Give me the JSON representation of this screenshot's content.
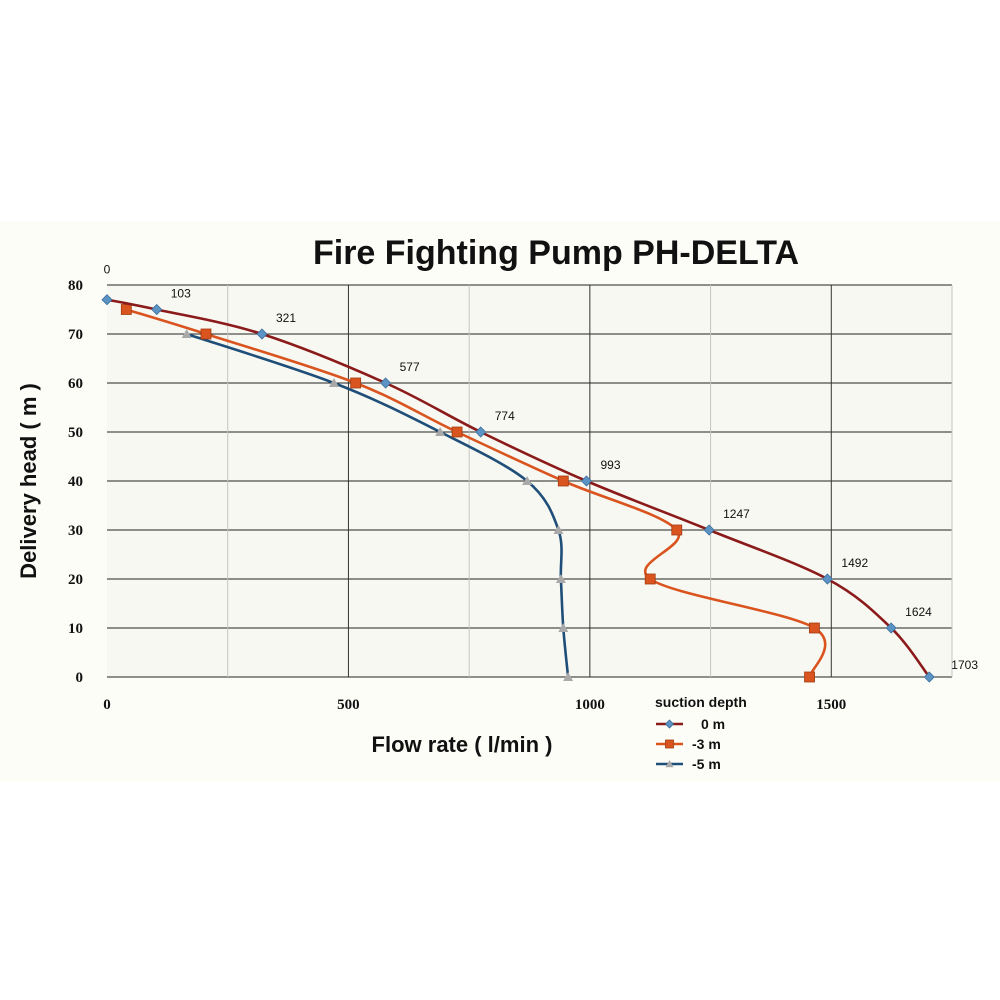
{
  "chart_data": {
    "type": "line",
    "title": "Fire Fighting Pump PH-DELTA",
    "xlabel": "Flow rate  ( l/min )",
    "ylabel": "Delivery head  ( m )",
    "xlim": [
      0,
      1750
    ],
    "ylim": [
      0,
      80
    ],
    "x_ticks": [
      0,
      500,
      1000,
      1500
    ],
    "y_ticks": [
      0,
      10,
      20,
      30,
      40,
      50,
      60,
      70,
      80
    ],
    "grid": true,
    "legend_title": "suction depth",
    "legend_position": "bottom-right",
    "series": [
      {
        "name": "0 m",
        "color": "#8b1a1a",
        "marker": "diamond",
        "marker_color": "#5b93c4",
        "points": [
          [
            0,
            77
          ],
          [
            103,
            75
          ],
          [
            321,
            70
          ],
          [
            577,
            60
          ],
          [
            774,
            50
          ],
          [
            993,
            40
          ],
          [
            1247,
            30
          ],
          [
            1492,
            20
          ],
          [
            1624,
            10
          ],
          [
            1703,
            0
          ]
        ],
        "labels": [
          "0",
          "103",
          "321",
          "577",
          "774",
          "993",
          "1247",
          "1492",
          "1624",
          "1703"
        ]
      },
      {
        "name": "-3 m",
        "color": "#d9541e",
        "marker": "square",
        "marker_color": "#d9541e",
        "points": [
          [
            40,
            75
          ],
          [
            205,
            70
          ],
          [
            515,
            60
          ],
          [
            725,
            50
          ],
          [
            945,
            40
          ],
          [
            1180,
            30
          ],
          [
            1125,
            20
          ],
          [
            1465,
            10
          ],
          [
            1455,
            0
          ]
        ]
      },
      {
        "name": "-5 m",
        "color": "#1f4e79",
        "marker": "triangle",
        "marker_color": "#a9a9a9",
        "points": [
          [
            165,
            70
          ],
          [
            470,
            60
          ],
          [
            690,
            50
          ],
          [
            870,
            40
          ],
          [
            935,
            30
          ],
          [
            940,
            20
          ],
          [
            945,
            10
          ],
          [
            955,
            0
          ]
        ]
      }
    ]
  }
}
